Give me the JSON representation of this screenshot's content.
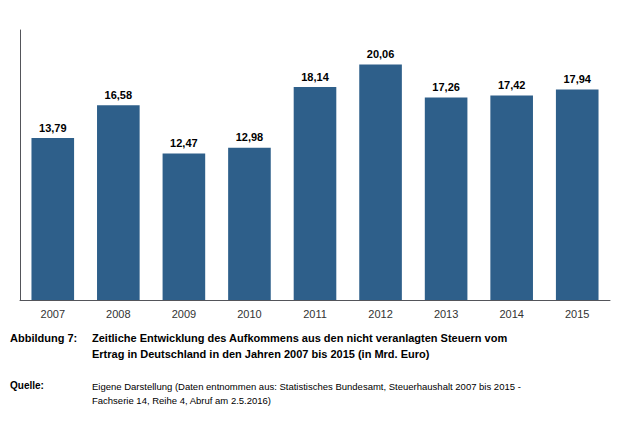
{
  "chart_data": {
    "type": "bar",
    "categories": [
      "2007",
      "2008",
      "2009",
      "2010",
      "2011",
      "2012",
      "2013",
      "2014",
      "2015"
    ],
    "values": [
      13.79,
      16.58,
      12.47,
      12.98,
      18.14,
      20.06,
      17.26,
      17.42,
      17.94
    ],
    "value_labels": [
      "13,79",
      "16,58",
      "12,47",
      "12,98",
      "18,14",
      "20,06",
      "17,26",
      "17,42",
      "17,94"
    ],
    "color": "#2E5F8A",
    "ylim": [
      0,
      23
    ],
    "grid": false,
    "data_labels": true,
    "tick_labels": "x",
    "annotations": [
      "Abbildung 7:",
      "Zeitliche Entwicklung des Aufkommens aus den nicht veranlagten Steuern vom\nErtrag in Deutschland in den Jahren 2007 bis 2015 (in Mrd. Euro)",
      "Quelle:",
      "Eigene Darstellung (Daten entnommen aus: Statistisches Bundesamt, Steuerhaushalt 2007 bis 2015 -\nFachserie 14, Reihe 4, Abruf am 2.5.2016)"
    ]
  }
}
